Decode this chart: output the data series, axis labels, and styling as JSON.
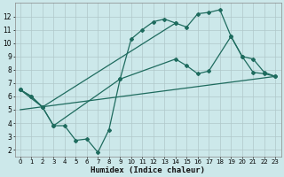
{
  "background_color": "#cce8ea",
  "grid_color": "#b0c8ca",
  "line_color": "#1e6b5e",
  "xlabel": "Humidex (Indice chaleur)",
  "xlim": [
    -0.5,
    23.5
  ],
  "ylim": [
    1.5,
    13.0
  ],
  "xtick_labels": [
    "0",
    "1",
    "2",
    "3",
    "4",
    "5",
    "6",
    "7",
    "8",
    "9",
    "10",
    "11",
    "12",
    "13",
    "14",
    "15",
    "16",
    "17",
    "18",
    "19",
    "20",
    "21",
    "22",
    "23"
  ],
  "xtick_pos": [
    0,
    1,
    2,
    3,
    4,
    5,
    6,
    7,
    8,
    9,
    10,
    11,
    12,
    13,
    14,
    15,
    16,
    17,
    18,
    19,
    20,
    21,
    22,
    23
  ],
  "ytick_pos": [
    2,
    3,
    4,
    5,
    6,
    7,
    8,
    9,
    10,
    11,
    12
  ],
  "ytick_labels": [
    "2",
    "3",
    "4",
    "5",
    "6",
    "7",
    "8",
    "9",
    "10",
    "11",
    "12"
  ],
  "line1_x": [
    0,
    1,
    2,
    3,
    4,
    5,
    6,
    7,
    8,
    9,
    10,
    11,
    12,
    13,
    14
  ],
  "line1_y": [
    6.5,
    6.0,
    5.2,
    3.8,
    3.8,
    2.7,
    2.8,
    1.8,
    3.5,
    7.3,
    10.3,
    11.0,
    11.6,
    11.8,
    11.5
  ],
  "line2_x": [
    0,
    1,
    2,
    14,
    15,
    16,
    17,
    18,
    19,
    20,
    21,
    22,
    23
  ],
  "line2_y": [
    6.5,
    6.0,
    5.2,
    11.5,
    11.2,
    12.2,
    12.3,
    12.5,
    10.5,
    9.0,
    7.8,
    7.7,
    7.5
  ],
  "line3_x": [
    0,
    2,
    3,
    9,
    14,
    15,
    16,
    17,
    19,
    20,
    21,
    22,
    23
  ],
  "line3_y": [
    6.5,
    5.2,
    3.8,
    7.3,
    8.8,
    8.3,
    7.7,
    7.9,
    10.5,
    9.0,
    8.8,
    7.8,
    7.5
  ],
  "line4_x": [
    0,
    23
  ],
  "line4_y": [
    5.0,
    7.5
  ]
}
